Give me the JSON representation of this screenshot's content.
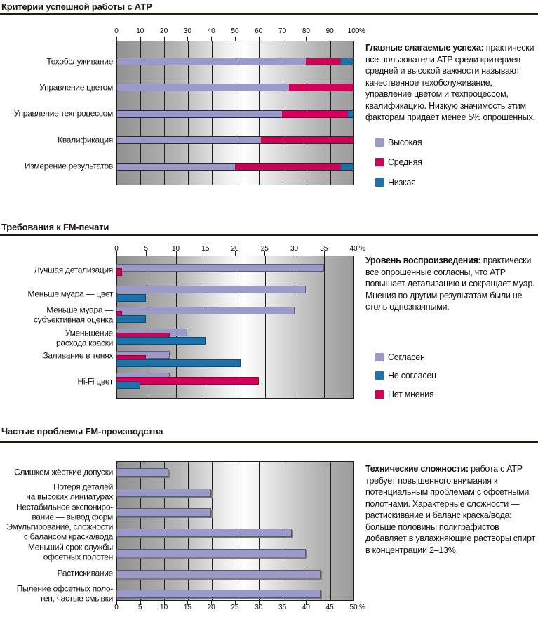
{
  "sections": [
    {
      "title": "Критерии успешной работы с АТР",
      "note_lead": "Главные слагаемые успеха:",
      "note_body": " практически все пользователи АТР среди критериев средней и высокой важности называют качественное техобслуживание, управление цветом и техпроцессом, квалификацию. Низкую значимость этим факторам придаёт менее 5% опрошенных.",
      "legend": [
        {
          "label": "Высокая",
          "color": "#9b99c9"
        },
        {
          "label": "Средняя",
          "color": "#d30059"
        },
        {
          "label": "Низкая",
          "color": "#1b73ae"
        }
      ]
    },
    {
      "title": "Требования к FM-печати",
      "note_lead": "Уровень воспроизведения:",
      "note_body": " практически все опрошенные согласны, что АТР повышает детализацию и сокращает муар. Мнения по другим результатам были не столь однозначными.",
      "legend": [
        {
          "label": "Согласен",
          "color": "#9b99c9"
        },
        {
          "label": "Не согласен",
          "color": "#1b73ae"
        },
        {
          "label": "Нет мнения",
          "color": "#d30059"
        }
      ]
    },
    {
      "title": "Частые проблемы FM-производства",
      "note_lead": "Технические сложности:",
      "note_body": " работа с АТР требует повышенного внимания к потенциальным проблемам с офсетными полотнами. Характерные сложности — растискивание и баланс краска/вода: больше половины полиграфистов добавляет в увлажняющие растворы спирт в концентрации 2–13%.",
      "legend": []
    }
  ],
  "chart_data": [
    {
      "type": "bar",
      "variant": "horizontal-stacked",
      "title": "Критерии успешной работы с АТР",
      "categories": [
        "Техобслуживание",
        "Управление цветом",
        "Управление техпроцессом",
        "Квалификация",
        "Измерение результатов"
      ],
      "series": [
        {
          "name": "Высокая",
          "color": "#9b99c9",
          "values": [
            80,
            73,
            70,
            61,
            50
          ]
        },
        {
          "name": "Средняя",
          "color": "#d30059",
          "values": [
            15,
            27,
            28,
            39,
            45
          ]
        },
        {
          "name": "Низкая",
          "color": "#1b73ae",
          "values": [
            5,
            0,
            2,
            0,
            5
          ]
        }
      ],
      "xlabel": "%",
      "xlim": [
        0,
        100
      ],
      "tick_step": 10,
      "tick_labels": [
        "0",
        "10",
        "20",
        "30",
        "40",
        "50",
        "60",
        "70",
        "80",
        "90",
        "100"
      ],
      "unit": "%",
      "axis_position": "top",
      "grid": true,
      "legend_position": "right"
    },
    {
      "type": "bar",
      "variant": "horizontal-grouped",
      "title": "Требования к FM-печати",
      "categories": [
        "Лучшая детализация",
        "Меньше муара — цвет",
        "Меньше муара —\nсубъективная оценка",
        "Уменьшение\nрасхода краски",
        "Заливание в тенях",
        "Hi-Fi цвет"
      ],
      "series": [
        {
          "name": "Согласен",
          "color": "#9b99c9",
          "values": [
            35,
            32,
            30,
            12,
            9,
            9
          ]
        },
        {
          "name": "Нет мнения",
          "color": "#d30059",
          "values": [
            1,
            0,
            1,
            9,
            5,
            24
          ]
        },
        {
          "name": "Не согласен",
          "color": "#1b73ae",
          "values": [
            0,
            5,
            5,
            15,
            21,
            4
          ]
        }
      ],
      "xlabel": "%",
      "xlim": [
        0,
        40
      ],
      "tick_step": 5,
      "tick_labels": [
        "0",
        "5",
        "10",
        "15",
        "20",
        "25",
        "30",
        "35",
        "40"
      ],
      "unit": "%",
      "axis_position": "top",
      "grid": true,
      "legend_position": "right"
    },
    {
      "type": "bar",
      "variant": "horizontal",
      "title": "Частые проблемы FM-производства",
      "categories": [
        "Слишком жёсткие допуски",
        "Потеря деталей\nна высоких линиатурах",
        "Нестабильное экспониро-\nвание — вывод форм",
        "Эмульгирование, сложности\nс балансом краска/вода",
        "Меньший срок службы\nофсетных полотен",
        "Растискивание",
        "Пыление офсетных поло-\nтен, частые смывки"
      ],
      "series": [
        {
          "name": "Доля опрошенных",
          "color": "#9b99c9",
          "values": [
            11,
            20,
            20,
            37,
            40,
            43,
            43
          ]
        }
      ],
      "xlabel": "%",
      "xlim": [
        0,
        50
      ],
      "tick_step": 5,
      "tick_labels": [
        "0",
        "5",
        "10",
        "15",
        "20",
        "25",
        "30",
        "35",
        "40",
        "45",
        "50"
      ],
      "unit": "%",
      "axis_position": "bottom",
      "grid": true,
      "legend_position": "none"
    }
  ]
}
